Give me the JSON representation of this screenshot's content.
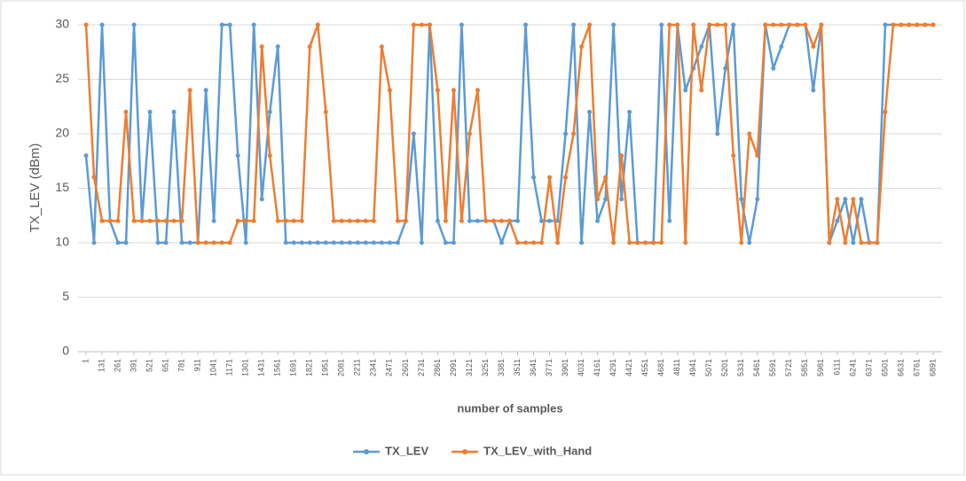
{
  "chart_data": {
    "type": "line",
    "x_label": "number of samples",
    "y_label": "TX_LEV (dBm)",
    "x": [
      1,
      66,
      131,
      196,
      261,
      326,
      391,
      456,
      521,
      586,
      651,
      716,
      781,
      846,
      911,
      976,
      1041,
      1106,
      1171,
      1236,
      1301,
      1366,
      1431,
      1496,
      1561,
      1626,
      1691,
      1756,
      1821,
      1886,
      1951,
      2016,
      2081,
      2146,
      2211,
      2276,
      2341,
      2406,
      2471,
      2536,
      2601,
      2666,
      2731,
      2796,
      2861,
      2926,
      2991,
      3056,
      3121,
      3186,
      3251,
      3316,
      3381,
      3446,
      3511,
      3576,
      3641,
      3706,
      3771,
      3836,
      3901,
      3966,
      4031,
      4096,
      4161,
      4226,
      4291,
      4356,
      4421,
      4486,
      4551,
      4616,
      4681,
      4746,
      4811,
      4876,
      4941,
      5006,
      5071,
      5136,
      5201,
      5266,
      5331,
      5396,
      5461,
      5526,
      5591,
      5656,
      5721,
      5786,
      5851,
      5916,
      5981,
      6046,
      6111,
      6176,
      6241,
      6306,
      6371,
      6436,
      6501,
      6566,
      6631,
      6696,
      6761,
      6826,
      6891
    ],
    "xlim": [
      1,
      6891
    ],
    "xticks": [
      1,
      131,
      261,
      391,
      521,
      651,
      781,
      911,
      1041,
      1171,
      1301,
      1431,
      1561,
      1691,
      1821,
      1951,
      2081,
      2211,
      2341,
      2471,
      2601,
      2731,
      2861,
      2991,
      3121,
      3251,
      3381,
      3511,
      3641,
      3771,
      3901,
      4031,
      4161,
      4291,
      4421,
      4551,
      4681,
      4811,
      4941,
      5071,
      5201,
      5331,
      5461,
      5591,
      5721,
      5851,
      5981,
      6111,
      6241,
      6371,
      6501,
      6631,
      6761,
      6891
    ],
    "ylim": [
      0,
      30
    ],
    "yticks": [
      0,
      5,
      10,
      15,
      20,
      25,
      30
    ],
    "grid": true,
    "legend": "bottom",
    "series": [
      {
        "name": "TX_LEV",
        "color": "#5b9bd5",
        "values": [
          18,
          10,
          30,
          12,
          10,
          10,
          30,
          12,
          22,
          10,
          10,
          22,
          10,
          10,
          10,
          24,
          12,
          30,
          30,
          18,
          10,
          30,
          14,
          22,
          28,
          10,
          10,
          10,
          10,
          10,
          10,
          10,
          10,
          10,
          10,
          10,
          10,
          10,
          10,
          10,
          12,
          20,
          10,
          30,
          12,
          10,
          10,
          30,
          12,
          12,
          12,
          12,
          10,
          12,
          12,
          30,
          16,
          12,
          12,
          12,
          20,
          30,
          10,
          22,
          12,
          14,
          30,
          14,
          22,
          10,
          10,
          10,
          30,
          12,
          30,
          24,
          26,
          28,
          30,
          20,
          26,
          30,
          14,
          10,
          14,
          30,
          26,
          28,
          30,
          30,
          30,
          24,
          30,
          10,
          12,
          14,
          10,
          14,
          10,
          10,
          30,
          30,
          30,
          30,
          30,
          30,
          30
        ]
      },
      {
        "name": "TX_LEV_with_Hand",
        "color": "#ed7d31",
        "values": [
          30,
          16,
          12,
          12,
          12,
          22,
          12,
          12,
          12,
          12,
          12,
          12,
          12,
          24,
          10,
          10,
          10,
          10,
          10,
          12,
          12,
          12,
          28,
          18,
          12,
          12,
          12,
          12,
          28,
          30,
          22,
          12,
          12,
          12,
          12,
          12,
          12,
          28,
          24,
          12,
          12,
          30,
          30,
          30,
          24,
          12,
          24,
          12,
          20,
          24,
          12,
          12,
          12,
          12,
          10,
          10,
          10,
          10,
          16,
          10,
          16,
          20,
          28,
          30,
          14,
          16,
          10,
          18,
          10,
          10,
          10,
          10,
          10,
          30,
          30,
          10,
          30,
          24,
          30,
          30,
          30,
          18,
          10,
          20,
          18,
          30,
          30,
          30,
          30,
          30,
          30,
          28,
          30,
          10,
          14,
          10,
          14,
          10,
          10,
          10,
          22,
          30,
          30,
          30,
          30,
          30,
          30
        ]
      }
    ]
  }
}
